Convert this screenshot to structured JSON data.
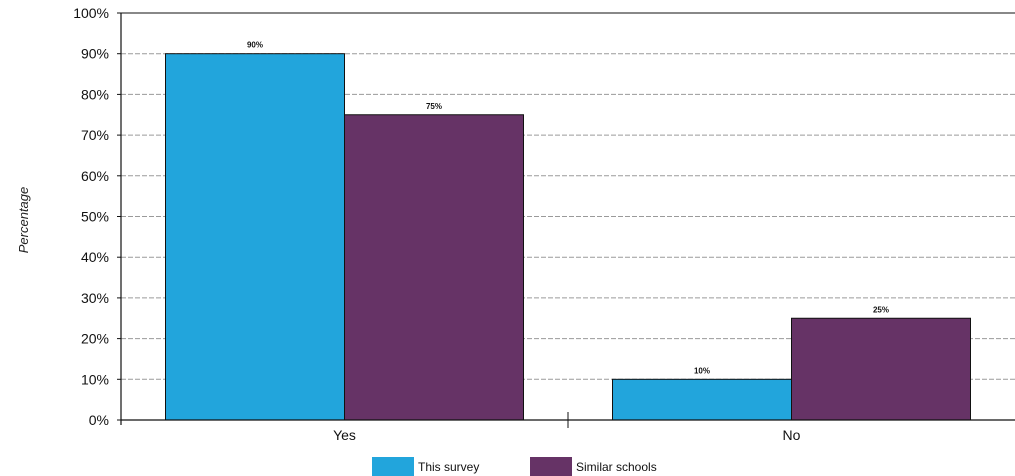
{
  "chart_data": {
    "type": "bar",
    "title": "",
    "xlabel": "",
    "ylabel": "Percentage",
    "ylim": [
      0,
      100
    ],
    "yticks": [
      "0%",
      "10%",
      "20%",
      "30%",
      "40%",
      "50%",
      "60%",
      "70%",
      "80%",
      "90%",
      "100%"
    ],
    "categories": [
      "Yes",
      "No"
    ],
    "series": [
      {
        "name": "This survey",
        "values": [
          90,
          10
        ],
        "labels": [
          "90%",
          "10%"
        ],
        "color": "#22a5dc"
      },
      {
        "name": "Similar schools",
        "values": [
          75,
          25
        ],
        "labels": [
          "75%",
          "25%"
        ],
        "color": "#663366"
      }
    ],
    "grid": true,
    "legend_position": "bottom"
  }
}
